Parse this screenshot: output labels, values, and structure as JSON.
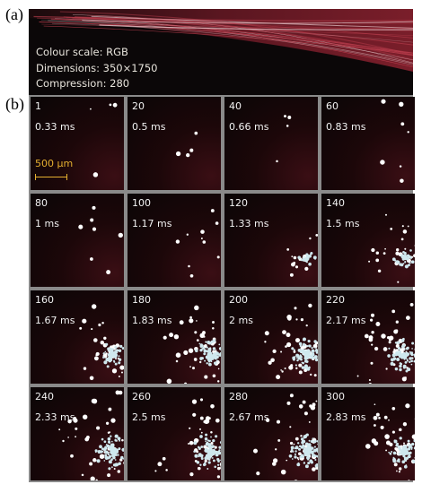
{
  "panel_a": {
    "label": "(a)",
    "lines": [
      "Colour scale: RGB",
      "Dimensions: 350×1750",
      "Compression: 280"
    ]
  },
  "panel_b": {
    "label": "(b)",
    "scale_bar": "500 µm",
    "frames": [
      {
        "index": "1",
        "time": "0.33 ms",
        "plume": 0.0
      },
      {
        "index": "20",
        "time": "0.5 ms",
        "plume": 0.0
      },
      {
        "index": "40",
        "time": "0.66 ms",
        "plume": 0.0
      },
      {
        "index": "60",
        "time": "0.83 ms",
        "plume": 0.05
      },
      {
        "index": "80",
        "time": "1 ms",
        "plume": 0.05
      },
      {
        "index": "100",
        "time": "1.17 ms",
        "plume": 0.1
      },
      {
        "index": "120",
        "time": "1.33 ms",
        "plume": 0.25
      },
      {
        "index": "140",
        "time": "1.5 ms",
        "plume": 0.4
      },
      {
        "index": "160",
        "time": "1.67 ms",
        "plume": 0.6
      },
      {
        "index": "180",
        "time": "1.83 ms",
        "plume": 0.8
      },
      {
        "index": "200",
        "time": "2 ms",
        "plume": 0.9
      },
      {
        "index": "220",
        "time": "2.17 ms",
        "plume": 0.95
      },
      {
        "index": "240",
        "time": "2.33 ms",
        "plume": 1.0
      },
      {
        "index": "260",
        "time": "2.5 ms",
        "plume": 1.0
      },
      {
        "index": "280",
        "time": "2.67 ms",
        "plume": 0.95
      },
      {
        "index": "300",
        "time": "2.83 ms",
        "plume": 0.9
      }
    ]
  },
  "colors": {
    "frame_border": "#8a8a8a",
    "scale_bar": "#e6b030",
    "streak": "#c04050",
    "particle": "#ffffff",
    "plume": "#cfe8ee"
  }
}
